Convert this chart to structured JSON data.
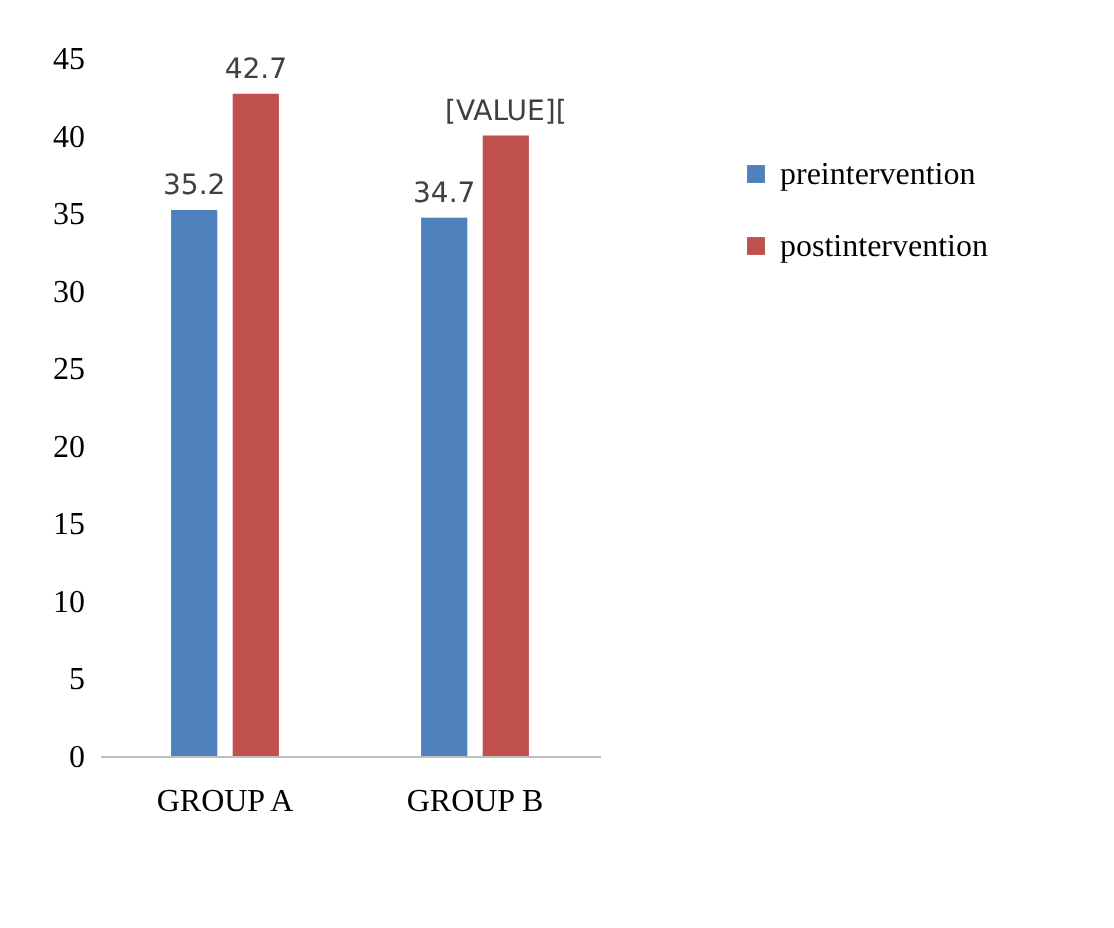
{
  "chart_data": {
    "type": "bar",
    "categories": [
      "GROUP A",
      "GROUP B"
    ],
    "series": [
      {
        "name": "preintervention",
        "color": "#4f81bd",
        "values": [
          35.2,
          34.7
        ],
        "value_labels": [
          "35.2",
          "34.7"
        ]
      },
      {
        "name": "postintervention",
        "color": "#c0504d",
        "values": [
          42.7,
          40
        ],
        "value_labels": [
          "42.7",
          "[VALUE]["
        ]
      }
    ],
    "ylim": [
      0,
      45
    ],
    "yticks": [
      0,
      5,
      10,
      15,
      20,
      25,
      30,
      35,
      40,
      45
    ],
    "grid": false,
    "legend": "right"
  }
}
